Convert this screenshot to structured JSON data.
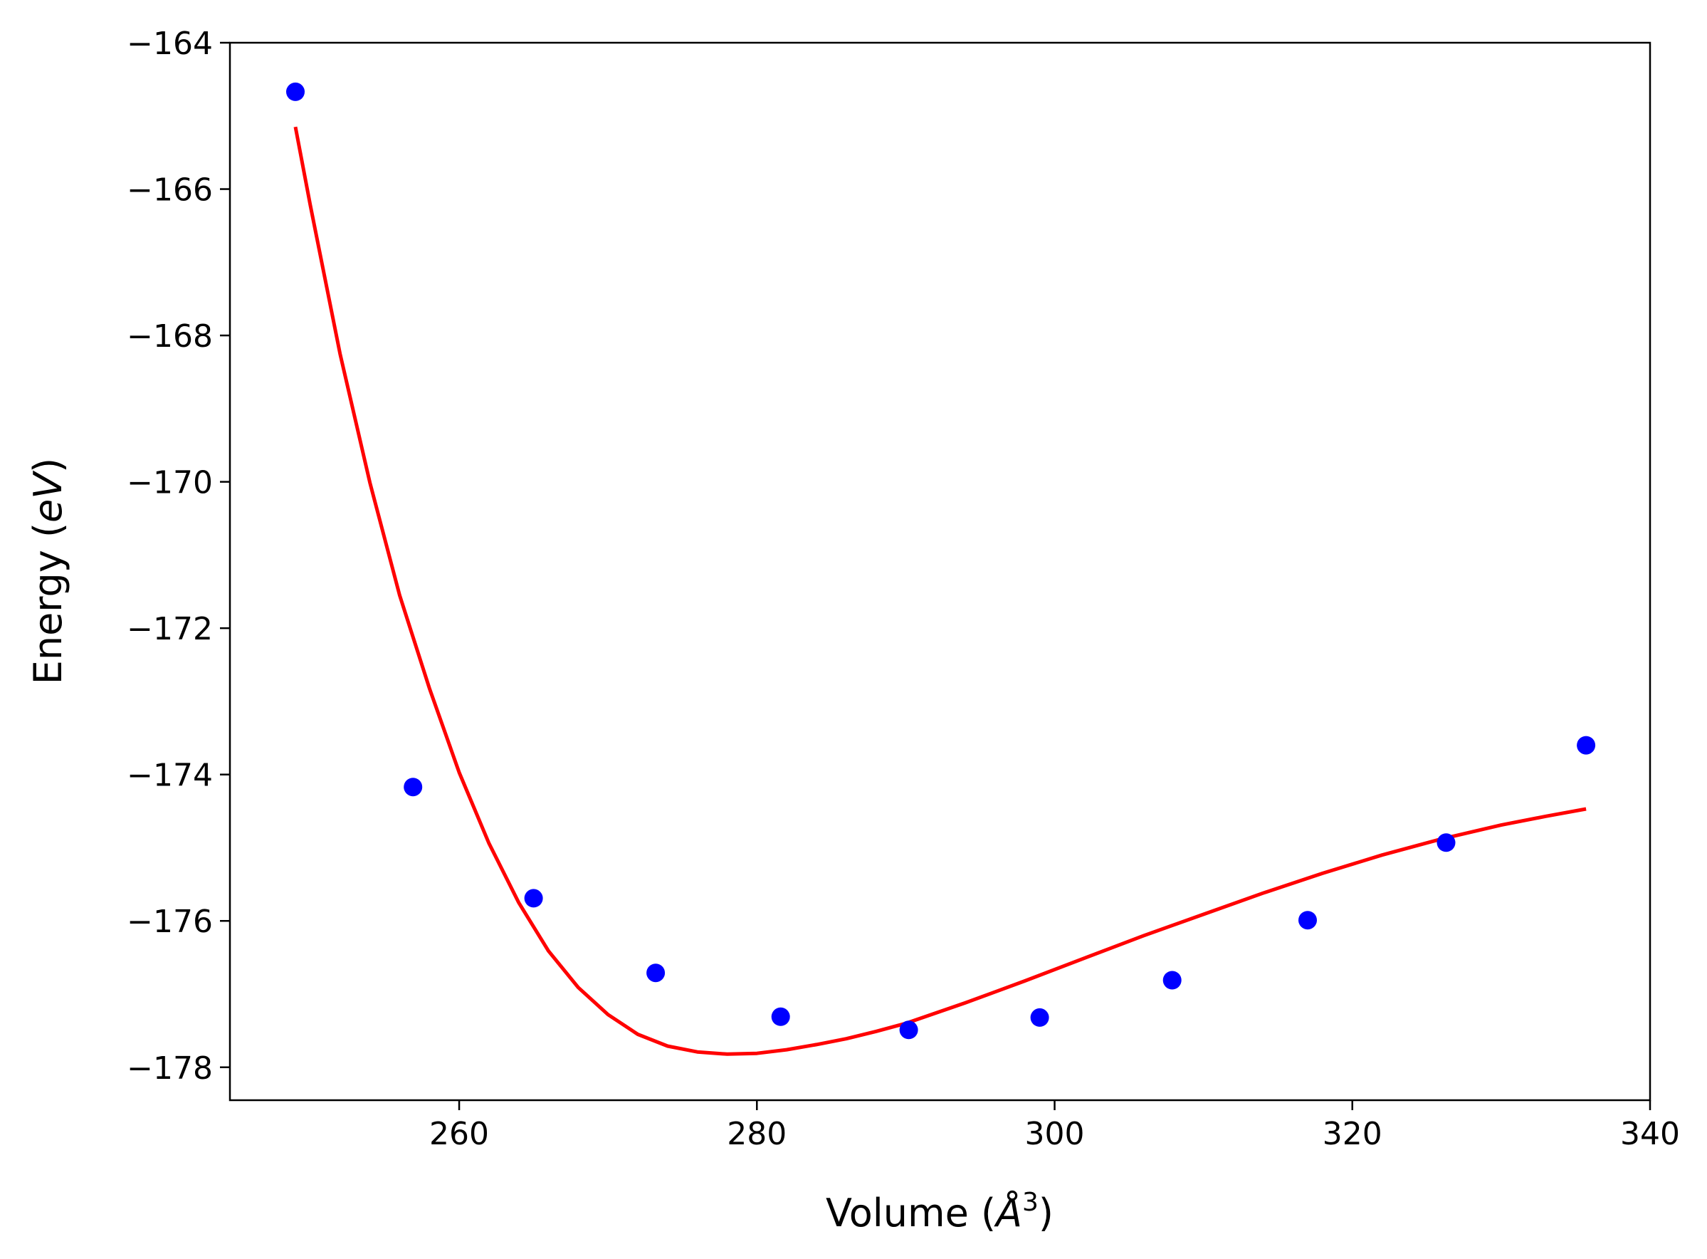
{
  "chart_data": {
    "type": "scatter",
    "xlabel_prefix": "Volume (",
    "xlabel_symbol": "Å",
    "xlabel_exp": "3",
    "xlabel_suffix": ")",
    "ylabel_prefix": "Energy (",
    "ylabel_italic": "eV",
    "ylabel_suffix": ")",
    "xlim": [
      244.6,
      340
    ],
    "ylim": [
      -178.45,
      -164
    ],
    "xticks": [
      260,
      280,
      300,
      320,
      340
    ],
    "yticks": [
      -164,
      -166,
      -168,
      -170,
      -172,
      -174,
      -176,
      -178
    ],
    "xtick_labels": [
      "260",
      "280",
      "300",
      "320",
      "340"
    ],
    "ytick_labels": [
      "−164",
      "−166",
      "−168",
      "−170",
      "−172",
      "−174",
      "−176",
      "−178"
    ],
    "grid": false,
    "series": [
      {
        "kind": "scatter",
        "color": "#0000ff",
        "x": [
          249.0,
          256.9,
          265.0,
          273.2,
          281.6,
          290.2,
          299.0,
          307.9,
          317.0,
          326.3,
          335.7
        ],
        "y": [
          -164.67,
          -174.17,
          -175.69,
          -176.71,
          -177.31,
          -177.49,
          -177.32,
          -176.81,
          -175.99,
          -174.93,
          -173.6
        ]
      },
      {
        "kind": "line",
        "color": "#ff0000",
        "x": [
          249.0,
          250,
          252,
          254,
          256,
          258,
          260,
          262,
          264,
          266,
          268,
          270,
          272,
          274,
          276,
          278,
          280,
          282,
          284,
          286,
          288,
          290,
          294,
          298,
          302,
          306,
          310,
          314,
          318,
          322,
          326,
          330,
          333,
          335.7
        ],
        "y": [
          -165.15,
          -166.22,
          -168.25,
          -170.01,
          -171.55,
          -172.82,
          -173.97,
          -174.94,
          -175.75,
          -176.41,
          -176.91,
          -177.28,
          -177.55,
          -177.71,
          -177.79,
          -177.82,
          -177.81,
          -177.76,
          -177.69,
          -177.61,
          -177.51,
          -177.4,
          -177.12,
          -176.82,
          -176.51,
          -176.2,
          -175.91,
          -175.62,
          -175.35,
          -175.1,
          -174.88,
          -174.69,
          -174.57,
          -174.47
        ]
      }
    ]
  }
}
